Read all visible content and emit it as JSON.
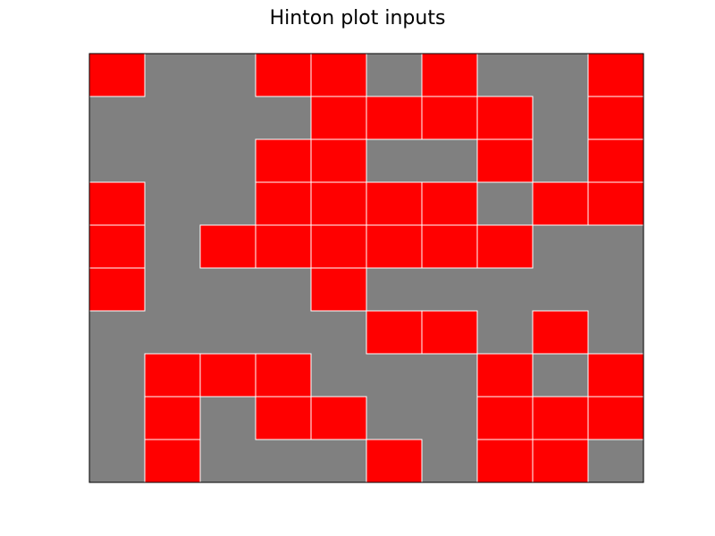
{
  "chart_data": {
    "type": "heatmap",
    "title": "Hinton plot inputs",
    "xlabel": "",
    "ylabel": "",
    "n_rows": 10,
    "n_cols": 10,
    "grid": false,
    "background_color": "#808080",
    "cell_color": "#ff0000",
    "cell_edge_color": "#ffffff",
    "values": [
      [
        1,
        0,
        0,
        1,
        1,
        0,
        1,
        0,
        0,
        1
      ],
      [
        0,
        0,
        0,
        0,
        1,
        1,
        1,
        1,
        0,
        1
      ],
      [
        0,
        0,
        0,
        1,
        1,
        0,
        0,
        1,
        0,
        1
      ],
      [
        1,
        0,
        0,
        1,
        1,
        1,
        1,
        0,
        1,
        1
      ],
      [
        1,
        0,
        1,
        1,
        1,
        1,
        1,
        1,
        0,
        0
      ],
      [
        1,
        0,
        0,
        0,
        1,
        0,
        0,
        0,
        0,
        0
      ],
      [
        0,
        0,
        0,
        0,
        0,
        1,
        1,
        0,
        1,
        0
      ],
      [
        0,
        1,
        1,
        1,
        0,
        0,
        0,
        1,
        0,
        1
      ],
      [
        0,
        1,
        0,
        1,
        1,
        0,
        0,
        1,
        1,
        1
      ],
      [
        0,
        1,
        0,
        0,
        0,
        1,
        0,
        1,
        1,
        0
      ]
    ]
  }
}
